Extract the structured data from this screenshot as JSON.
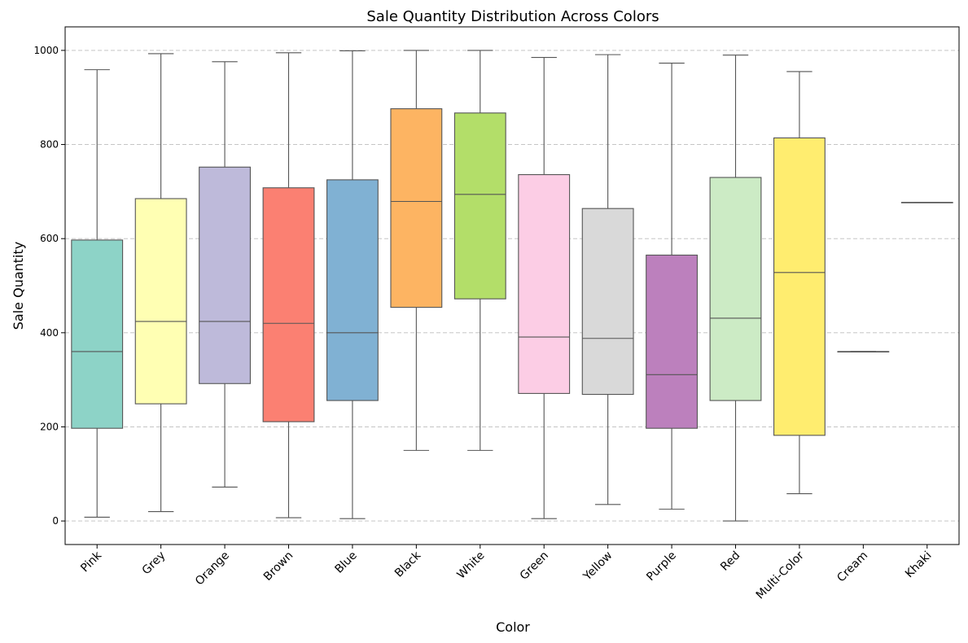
{
  "chart_data": {
    "type": "box",
    "title": "Sale Quantity Distribution Across Colors",
    "xlabel": "Color",
    "ylabel": "Sale Quantity",
    "ylim": [
      -50,
      1050
    ],
    "yticks": [
      0,
      200,
      400,
      600,
      800,
      1000
    ],
    "grid": "y, dashed",
    "categories": [
      "Pink",
      "Grey",
      "Orange",
      "Brown",
      "Blue",
      "Black",
      "White",
      "Green",
      "Yellow",
      "Purple",
      "Red",
      "Multi-Color",
      "Cream",
      "Khaki"
    ],
    "boxes": [
      {
        "category": "Pink",
        "min": 8,
        "q1": 197,
        "median": 360,
        "q3": 597,
        "max": 959,
        "color": "#8dd3c7"
      },
      {
        "category": "Grey",
        "min": 20,
        "q1": 249,
        "median": 424,
        "q3": 685,
        "max": 993,
        "color": "#ffffb3"
      },
      {
        "category": "Orange",
        "min": 72,
        "q1": 292,
        "median": 424,
        "q3": 752,
        "max": 976,
        "color": "#bebada"
      },
      {
        "category": "Brown",
        "min": 7,
        "q1": 211,
        "median": 420,
        "q3": 708,
        "max": 995,
        "color": "#fb8072"
      },
      {
        "category": "Blue",
        "min": 5,
        "q1": 256,
        "median": 400,
        "q3": 725,
        "max": 999,
        "color": "#80b1d3"
      },
      {
        "category": "Black",
        "min": 150,
        "q1": 454,
        "median": 679,
        "q3": 876,
        "max": 1000,
        "color": "#fdb462"
      },
      {
        "category": "White",
        "min": 150,
        "q1": 472,
        "median": 694,
        "q3": 867,
        "max": 1000,
        "color": "#b3de69"
      },
      {
        "category": "Green",
        "min": 5,
        "q1": 271,
        "median": 391,
        "q3": 736,
        "max": 985,
        "color": "#fccde5"
      },
      {
        "category": "Yellow",
        "min": 35,
        "q1": 269,
        "median": 388,
        "q3": 664,
        "max": 991,
        "color": "#d9d9d9"
      },
      {
        "category": "Purple",
        "min": 25,
        "q1": 197,
        "median": 311,
        "q3": 565,
        "max": 973,
        "color": "#bc80bd"
      },
      {
        "category": "Red",
        "min": 0,
        "q1": 256,
        "median": 431,
        "q3": 730,
        "max": 990,
        "color": "#ccebc5"
      },
      {
        "category": "Multi-Color",
        "min": 58,
        "q1": 182,
        "median": 528,
        "q3": 814,
        "max": 955,
        "color": "#ffed6f"
      },
      {
        "category": "Cream",
        "min": 360,
        "q1": 360,
        "median": 360,
        "q3": 360,
        "max": 360,
        "color": "#8dd3c7"
      },
      {
        "category": "Khaki",
        "min": 677,
        "q1": 677,
        "median": 677,
        "q3": 677,
        "max": 677,
        "color": "#ffffb3"
      }
    ]
  }
}
